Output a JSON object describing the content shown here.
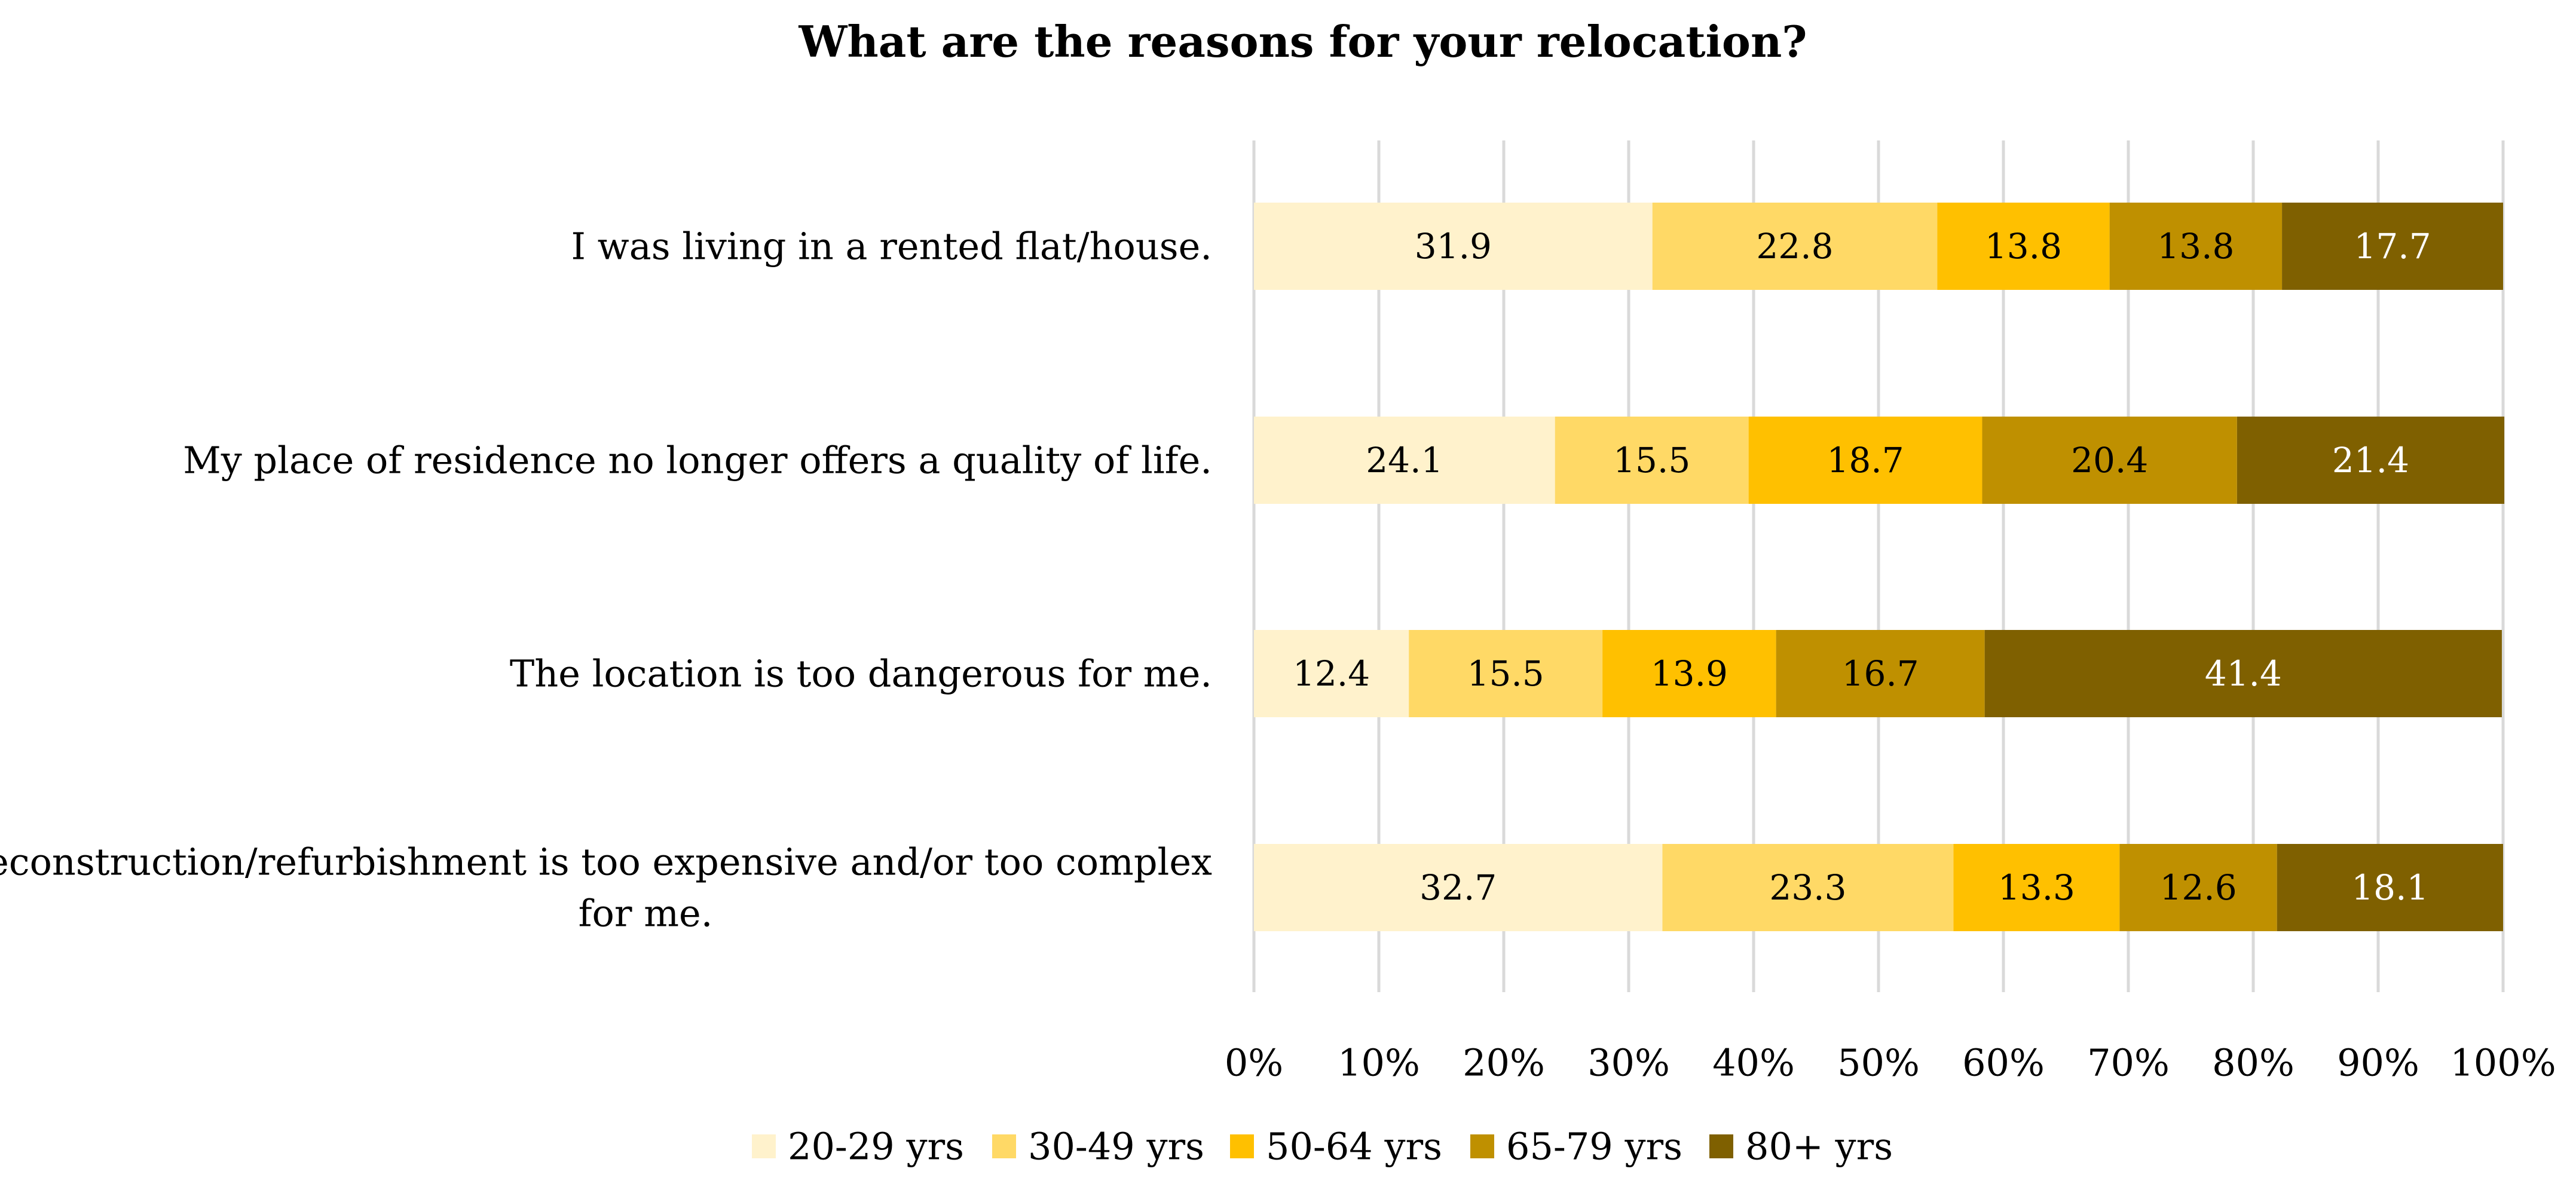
{
  "chart_data": {
    "type": "bar",
    "orientation": "horizontal",
    "stacked": true,
    "title": "What are the reasons for your relocation?",
    "categories": [
      [
        "I was living in a rented flat/house."
      ],
      [
        "My place of residence no longer offers a quality of life."
      ],
      [
        "The location is too dangerous for me."
      ],
      [
        "Reconstruction/refurbishment is too expensive and/or too complex",
        "for me."
      ]
    ],
    "series": [
      {
        "name": "20-29 yrs",
        "color": "#FFF2CC",
        "label_color": "#000000",
        "values": [
          31.9,
          24.1,
          12.4,
          32.7
        ]
      },
      {
        "name": "30-49 yrs",
        "color": "#FFD966",
        "label_color": "#000000",
        "values": [
          22.8,
          15.5,
          15.5,
          23.3
        ]
      },
      {
        "name": "50-64 yrs",
        "color": "#FFC000",
        "label_color": "#000000",
        "values": [
          13.8,
          18.7,
          13.9,
          13.3
        ]
      },
      {
        "name": "65-79 yrs",
        "color": "#BF9000",
        "label_color": "#000000",
        "values": [
          13.8,
          20.4,
          16.7,
          12.6
        ]
      },
      {
        "name": "80+ yrs",
        "color": "#7F6000",
        "label_color": "#ffffff",
        "values": [
          17.7,
          21.4,
          41.4,
          18.1
        ]
      }
    ],
    "xlim": [
      0,
      100
    ],
    "x_ticks": [
      "0%",
      "10%",
      "20%",
      "30%",
      "40%",
      "50%",
      "60%",
      "70%",
      "80%",
      "90%",
      "100%"
    ],
    "grid": true,
    "legend_position": "bottom"
  }
}
